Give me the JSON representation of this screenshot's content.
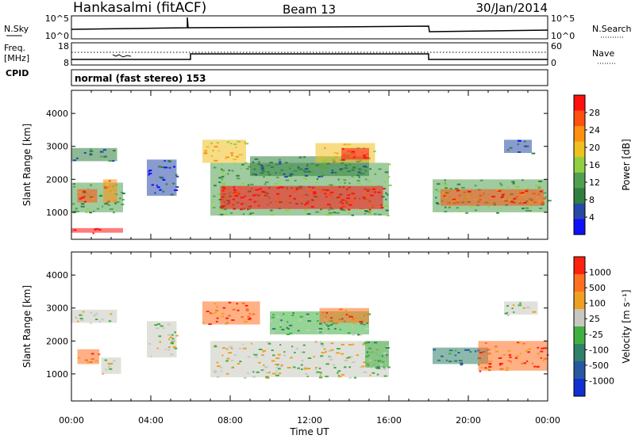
{
  "header": {
    "station": "Hankasalmi (fitACF)",
    "beam": "Beam 13",
    "date": "30/Jan/2014"
  },
  "panels": {
    "nsky": {
      "label": "N.Sky",
      "right_label": "N.Search",
      "left_ticks": [
        "10^5",
        "10^0"
      ],
      "right_ticks": [
        "10^5",
        "10^0"
      ]
    },
    "freq": {
      "label_line1": "Freq.",
      "label_line2": "[MHz]",
      "left_ticks": [
        "18",
        "8"
      ],
      "right_ticks": [
        "60",
        "0"
      ],
      "right_label": "Nave"
    },
    "cpid": {
      "label": "CPID",
      "value": "normal (fast stereo) 153"
    }
  },
  "chart_data": [
    {
      "type": "heatmap",
      "name": "power",
      "xlabel": "Time UT",
      "ylabel": "Slant Range [km]",
      "x_ticks": [
        "00:00",
        "04:00",
        "08:00",
        "12:00",
        "16:00",
        "20:00",
        "00:00"
      ],
      "xlim_hours": [
        0,
        24
      ],
      "y_ticks": [
        1000,
        2000,
        3000,
        4000
      ],
      "ylim": [
        180,
        4700
      ],
      "colorbar": {
        "label": "Power [dB]",
        "ticks": [
          "28",
          "24",
          "20",
          "16",
          "12",
          "8",
          "4"
        ],
        "range": [
          0,
          30
        ],
        "colors": [
          "#1010ff",
          "#2848a8",
          "#2f8040",
          "#50a050",
          "#90d040",
          "#f0c020",
          "#ff9010",
          "#ff5010",
          "#ff1010"
        ]
      },
      "patches": [
        {
          "t0": 0.0,
          "t1": 2.3,
          "r0": 2550,
          "r1": 2950,
          "level": 2
        },
        {
          "t0": 0.0,
          "t1": 2.6,
          "r0": 1000,
          "r1": 1900,
          "level": 3
        },
        {
          "t0": 0.3,
          "t1": 1.3,
          "r0": 1300,
          "r1": 1700,
          "level": 7
        },
        {
          "t0": 1.6,
          "t1": 2.3,
          "r0": 1300,
          "r1": 2000,
          "level": 6
        },
        {
          "t0": 0.0,
          "t1": 2.6,
          "r0": 380,
          "r1": 520,
          "level": 8
        },
        {
          "t0": 3.8,
          "t1": 5.3,
          "r0": 1500,
          "r1": 2600,
          "level": 1
        },
        {
          "t0": 6.6,
          "t1": 8.8,
          "r0": 2500,
          "r1": 3200,
          "level": 5
        },
        {
          "t0": 7.0,
          "t1": 16.0,
          "r0": 900,
          "r1": 2500,
          "level": 3
        },
        {
          "t0": 7.5,
          "t1": 15.7,
          "r0": 1100,
          "r1": 1800,
          "level": 8
        },
        {
          "t0": 9.0,
          "t1": 15.0,
          "r0": 2100,
          "r1": 2700,
          "level": 2
        },
        {
          "t0": 12.3,
          "t1": 15.3,
          "r0": 2500,
          "r1": 3100,
          "level": 5
        },
        {
          "t0": 13.6,
          "t1": 15.0,
          "r0": 2600,
          "r1": 2950,
          "level": 8
        },
        {
          "t0": 18.2,
          "t1": 24.0,
          "r0": 1000,
          "r1": 2000,
          "level": 3
        },
        {
          "t0": 18.6,
          "t1": 23.8,
          "r0": 1200,
          "r1": 1700,
          "level": 7
        },
        {
          "t0": 21.8,
          "t1": 23.2,
          "r0": 2800,
          "r1": 3200,
          "level": 1
        }
      ]
    },
    {
      "type": "heatmap",
      "name": "velocity",
      "xlabel": "Time UT",
      "ylabel": "Slant Range [km]",
      "x_ticks": [
        "00:00",
        "04:00",
        "08:00",
        "12:00",
        "16:00",
        "20:00",
        "00:00"
      ],
      "xlim_hours": [
        0,
        24
      ],
      "y_ticks": [
        1000,
        2000,
        3000,
        4000
      ],
      "ylim": [
        180,
        4700
      ],
      "colorbar": {
        "label": "Velocity [m s⁻¹]",
        "ticks": [
          "1000",
          "500",
          "100",
          "25",
          "-25",
          "-100",
          "-500",
          "-1000"
        ],
        "range": [
          -1000,
          1000
        ],
        "colors": [
          "#1030d0",
          "#2858a0",
          "#30806a",
          "#40b040",
          "#c8c8c0",
          "#f0a020",
          "#ff7020",
          "#ff2010"
        ]
      },
      "patches": [
        {
          "t0": 0.0,
          "t1": 2.3,
          "r0": 2550,
          "r1": 2950,
          "level": 4
        },
        {
          "t0": 0.3,
          "t1": 1.4,
          "r0": 1300,
          "r1": 1750,
          "level": 6
        },
        {
          "t0": 1.5,
          "t1": 2.5,
          "r0": 1000,
          "r1": 1500,
          "level": 4
        },
        {
          "t0": 3.8,
          "t1": 5.3,
          "r0": 1500,
          "r1": 2600,
          "level": 4
        },
        {
          "t0": 6.6,
          "t1": 9.5,
          "r0": 2500,
          "r1": 3200,
          "level": 6
        },
        {
          "t0": 7.0,
          "t1": 16.0,
          "r0": 900,
          "r1": 2000,
          "level": 4
        },
        {
          "t0": 10.0,
          "t1": 15.0,
          "r0": 2200,
          "r1": 2900,
          "level": 3
        },
        {
          "t0": 12.5,
          "t1": 15.0,
          "r0": 2550,
          "r1": 3000,
          "level": 6
        },
        {
          "t0": 14.8,
          "t1": 16.0,
          "r0": 1200,
          "r1": 2000,
          "level": 3
        },
        {
          "t0": 18.2,
          "t1": 21.0,
          "r0": 1300,
          "r1": 1800,
          "level": 2
        },
        {
          "t0": 20.5,
          "t1": 24.0,
          "r0": 1100,
          "r1": 2000,
          "level": 6
        },
        {
          "t0": 21.8,
          "t1": 23.5,
          "r0": 2800,
          "r1": 3200,
          "level": 4
        }
      ]
    }
  ]
}
